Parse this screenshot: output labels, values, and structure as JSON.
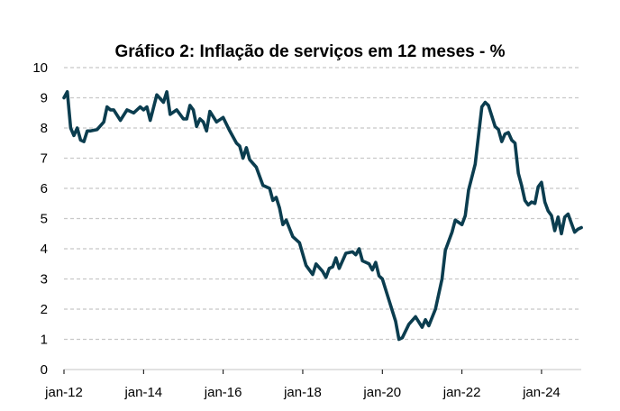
{
  "chart_data": {
    "type": "line",
    "title": "Gráfico 2: Inflação de serviços em 12 meses - %",
    "xlabel": "",
    "ylabel": "",
    "ylim": [
      0,
      10
    ],
    "yticks": [
      0,
      1,
      2,
      3,
      4,
      5,
      6,
      7,
      8,
      9,
      10
    ],
    "xticks": [
      "jan-12",
      "jan-14",
      "jan-16",
      "jan-18",
      "jan-20",
      "jan-22",
      "jan-24"
    ],
    "xtick_dates": [
      "2012-01",
      "2014-01",
      "2016-01",
      "2018-01",
      "2020-01",
      "2022-01",
      "2024-01"
    ],
    "grid": "horizontal dashed",
    "line_color": "#0b3d4f",
    "grid_color": "#c8c8c8",
    "series": [
      {
        "x": [
          "2012-01",
          "2012-02",
          "2012-03",
          "2012-04",
          "2012-05",
          "2012-06",
          "2012-07",
          "2012-08",
          "2012-09",
          "2012-11",
          "2013-01",
          "2013-02",
          "2013-03",
          "2013-04",
          "2013-06",
          "2013-08",
          "2013-10",
          "2013-12",
          "2014-01",
          "2014-02",
          "2014-03",
          "2014-05",
          "2014-07",
          "2014-08",
          "2014-09",
          "2014-11",
          "2015-01",
          "2015-02",
          "2015-03",
          "2015-04",
          "2015-05",
          "2015-06",
          "2015-07",
          "2015-08",
          "2015-09",
          "2015-11",
          "2016-01",
          "2016-03",
          "2016-05",
          "2016-06",
          "2016-07",
          "2016-08",
          "2016-09",
          "2016-11",
          "2017-01",
          "2017-03",
          "2017-04",
          "2017-05",
          "2017-06",
          "2017-07",
          "2017-08",
          "2017-10",
          "2017-12",
          "2018-02",
          "2018-04",
          "2018-05",
          "2018-07",
          "2018-08",
          "2018-09",
          "2018-10",
          "2018-11",
          "2018-12",
          "2019-02",
          "2019-04",
          "2019-05",
          "2019-06",
          "2019-07",
          "2019-09",
          "2019-10",
          "2019-11",
          "2019-12",
          "2020-01",
          "2020-03",
          "2020-05",
          "2020-06",
          "2020-07",
          "2020-09",
          "2020-11",
          "2021-01",
          "2021-02",
          "2021-03",
          "2021-05",
          "2021-07",
          "2021-08",
          "2021-10",
          "2021-11",
          "2022-01",
          "2022-02",
          "2022-03",
          "2022-05",
          "2022-07",
          "2022-08",
          "2022-09",
          "2022-10",
          "2022-11",
          "2022-12",
          "2023-01",
          "2023-02",
          "2023-03",
          "2023-04",
          "2023-05",
          "2023-06",
          "2023-07",
          "2023-08",
          "2023-09",
          "2023-10",
          "2023-11",
          "2023-12",
          "2024-01",
          "2024-02",
          "2024-03",
          "2024-04",
          "2024-05",
          "2024-06",
          "2024-07",
          "2024-08",
          "2024-09",
          "2024-10",
          "2024-11",
          "2024-12",
          "2025-01"
        ],
        "values": [
          9.0,
          9.2,
          8.0,
          7.75,
          8.0,
          7.6,
          7.55,
          7.9,
          7.9,
          7.95,
          8.2,
          8.7,
          8.6,
          8.6,
          8.25,
          8.6,
          8.5,
          8.7,
          8.6,
          8.7,
          8.25,
          9.1,
          8.85,
          9.2,
          8.45,
          8.6,
          8.3,
          8.3,
          8.75,
          8.6,
          8.05,
          8.3,
          8.2,
          7.9,
          8.55,
          8.2,
          8.35,
          7.9,
          7.5,
          7.4,
          7.0,
          7.35,
          6.95,
          6.7,
          6.1,
          6.0,
          5.6,
          5.7,
          5.35,
          4.8,
          4.95,
          4.4,
          4.2,
          3.45,
          3.15,
          3.5,
          3.25,
          3.05,
          3.35,
          3.4,
          3.7,
          3.35,
          3.85,
          3.9,
          3.8,
          4.0,
          3.6,
          3.5,
          3.3,
          3.55,
          3.1,
          3.0,
          2.3,
          1.6,
          1.0,
          1.05,
          1.5,
          1.75,
          1.4,
          1.65,
          1.45,
          2.0,
          3.0,
          3.95,
          4.55,
          4.95,
          4.8,
          5.1,
          5.95,
          6.8,
          8.7,
          8.85,
          8.75,
          8.4,
          8.05,
          7.95,
          7.55,
          7.8,
          7.85,
          7.6,
          7.5,
          6.5,
          6.1,
          5.6,
          5.45,
          5.55,
          5.5,
          6.05,
          6.2,
          5.55,
          5.25,
          5.1,
          4.6,
          5.05,
          4.5,
          5.05,
          5.15,
          4.85,
          4.55,
          4.65,
          4.7
        ]
      }
    ]
  }
}
